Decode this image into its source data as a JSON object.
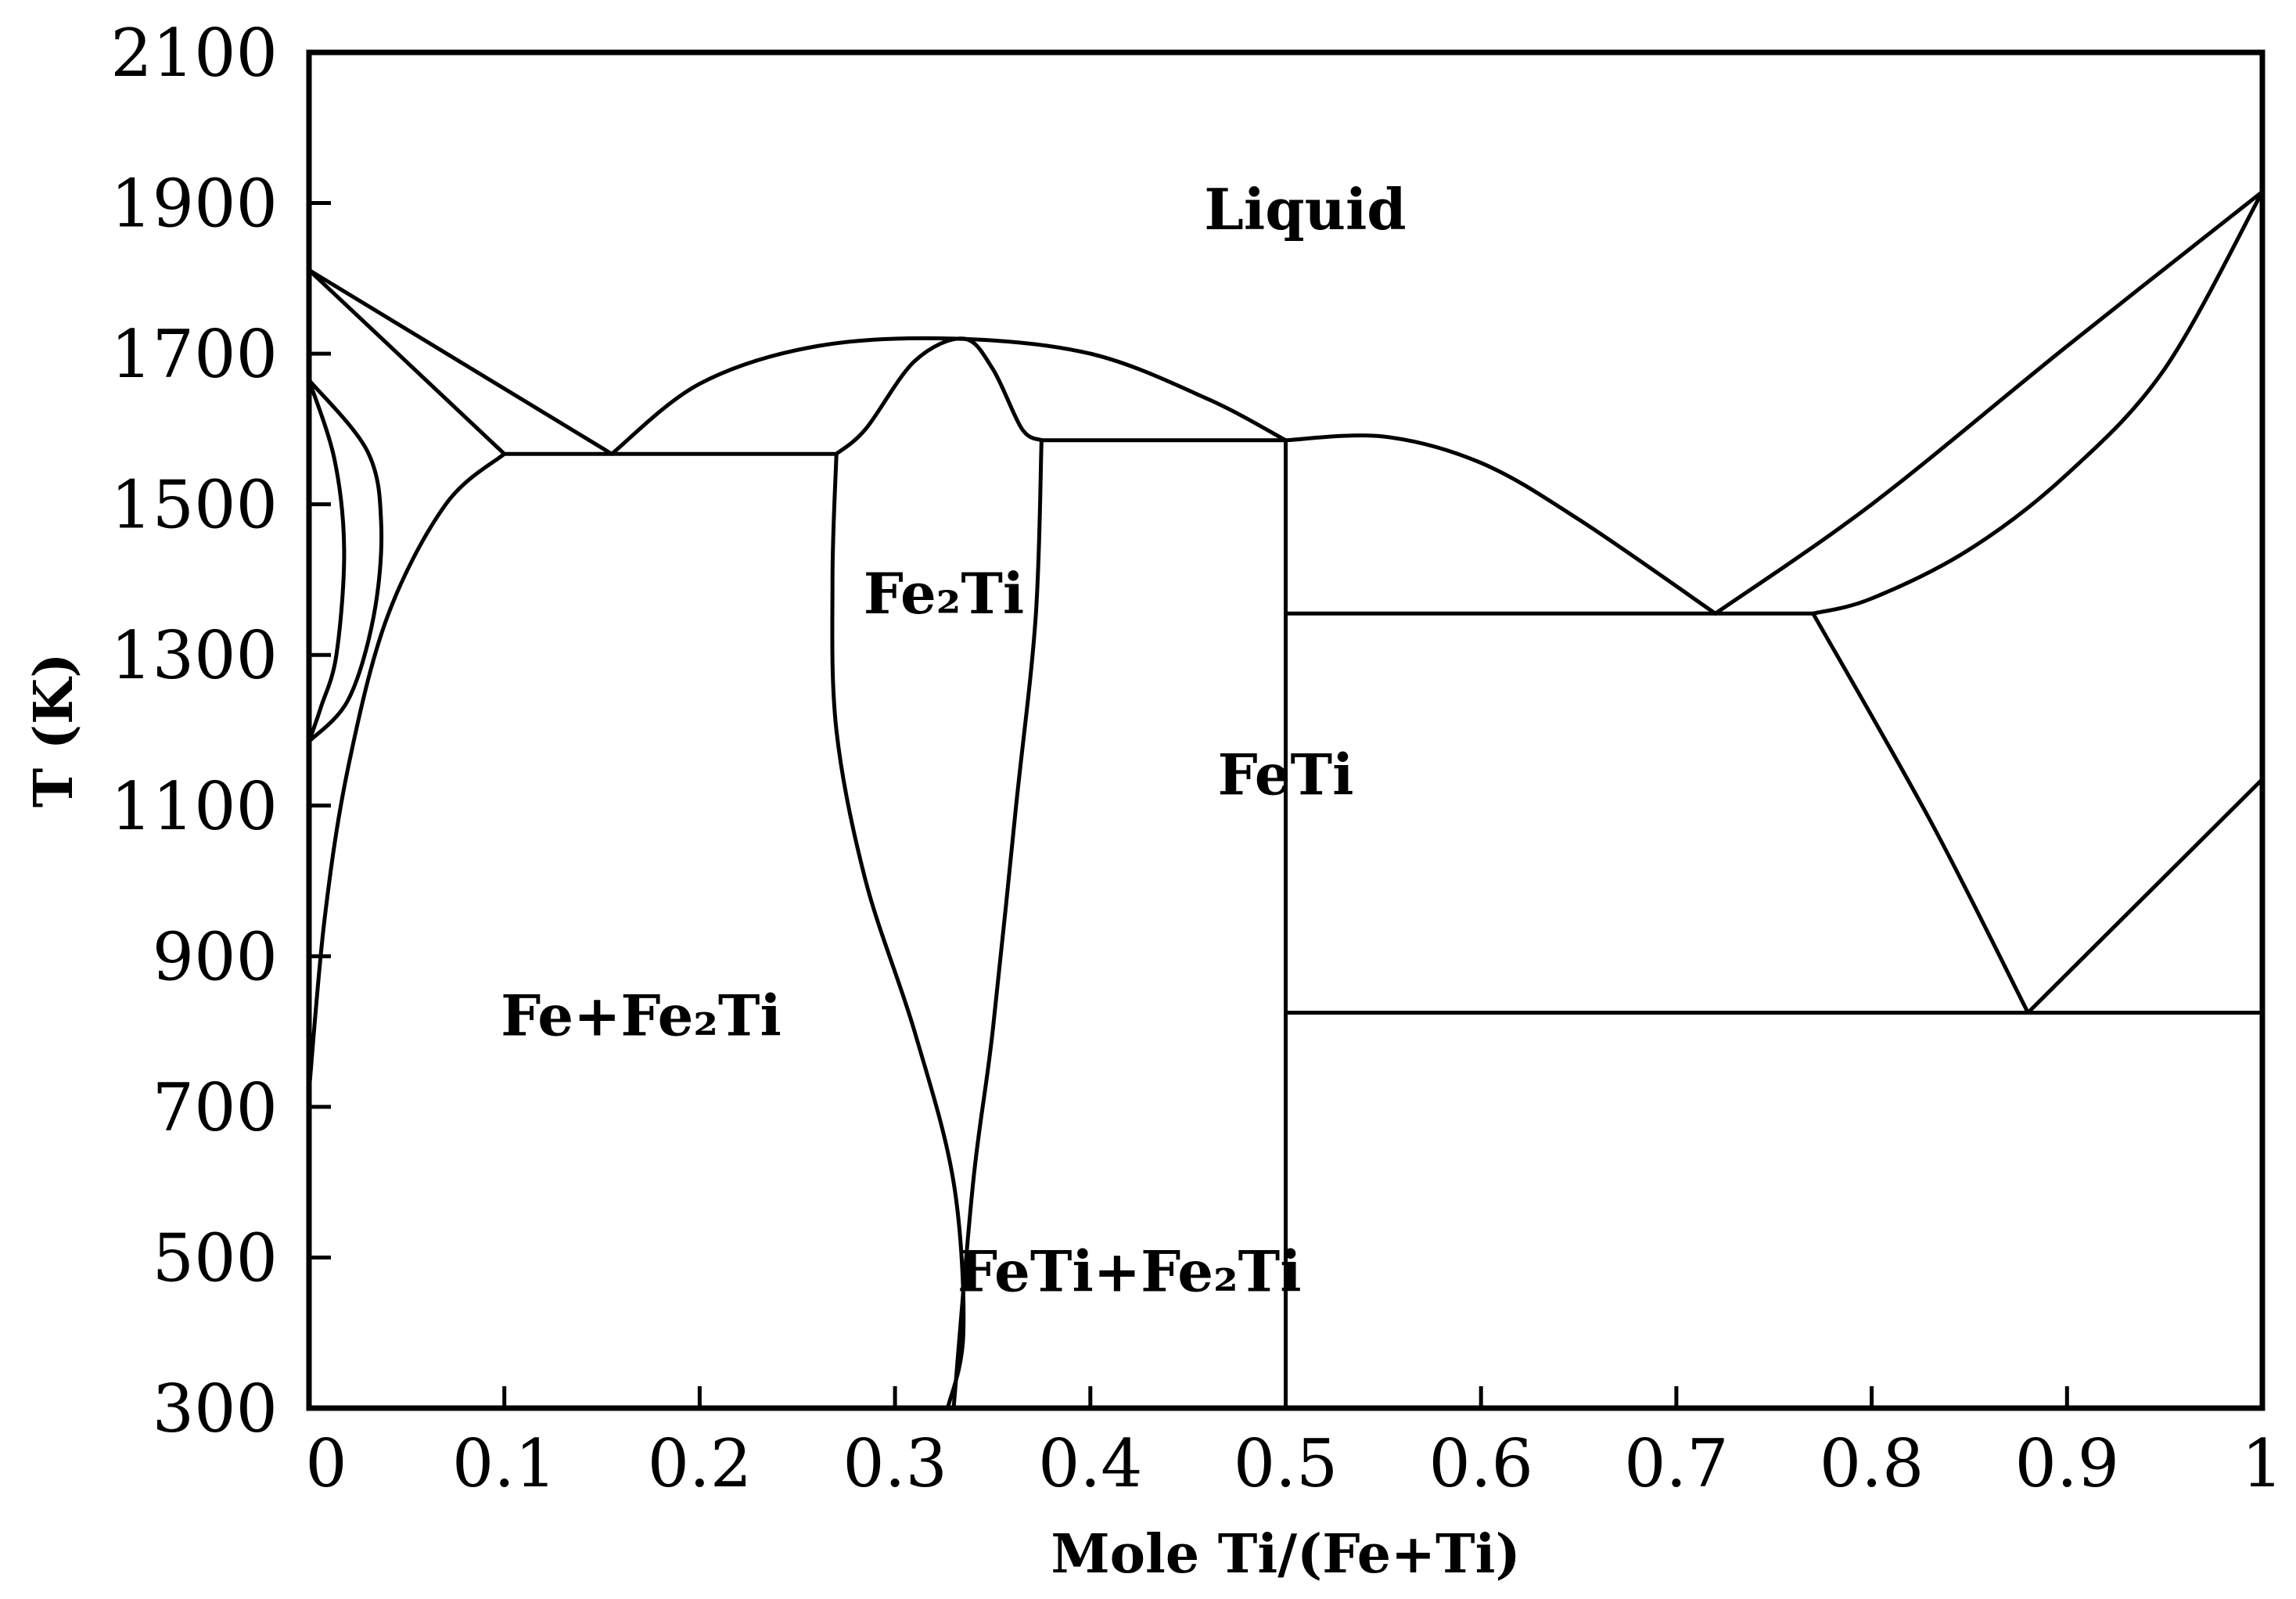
{
  "chart_data": {
    "type": "line",
    "title": "",
    "xlabel": "Mole Ti/(Fe+Ti)",
    "ylabel": "T (K)",
    "xlim": [
      0,
      1
    ],
    "ylim": [
      300,
      2100
    ],
    "xticks": [
      0,
      0.1,
      0.2,
      0.3,
      0.4,
      0.5,
      0.6,
      0.7,
      0.8,
      0.9,
      1
    ],
    "xtick_labels": [
      "0",
      "0.1",
      "0.2",
      "0.3",
      "0.4",
      "0.5",
      "0.6",
      "0.7",
      "0.8",
      "0.9",
      "1"
    ],
    "yticks": [
      300,
      500,
      700,
      900,
      1100,
      1300,
      1500,
      1700,
      1900,
      2100
    ],
    "ytick_labels": [
      "300",
      "500",
      "700",
      "900",
      "1100",
      "1300",
      "1500",
      "1700",
      "1900",
      "2100"
    ],
    "grid": false,
    "legend": "none",
    "region_labels": [
      {
        "text": "Liquid",
        "x": 0.51,
        "y": 1890
      },
      {
        "text": "Fe₂Ti",
        "x": 0.325,
        "y": 1380
      },
      {
        "text": "FeTi",
        "x": 0.5,
        "y": 1140
      },
      {
        "text": "Fe+Fe₂Ti",
        "x": 0.17,
        "y": 820
      },
      {
        "text": "FeTi+Fe₂Ti",
        "x": 0.42,
        "y": 480
      }
    ],
    "series": [
      {
        "points": [
          [
            0,
            1811
          ],
          [
            0.1,
            1567
          ]
        ]
      },
      {
        "points": [
          [
            0,
            1811
          ],
          [
            0.155,
            1567
          ]
        ]
      },
      {
        "points": [
          [
            0.1,
            1567
          ],
          [
            0.27,
            1567
          ]
        ]
      },
      {
        "points": [
          [
            0.1,
            1567
          ],
          [
            0.07,
            1500
          ],
          [
            0.04,
            1350
          ],
          [
            0.02,
            1150
          ],
          [
            0.008,
            950
          ],
          [
            0,
            720
          ]
        ]
      },
      {
        "points": [
          [
            0,
            1665
          ],
          [
            0.03,
            1570
          ],
          [
            0.037,
            1470
          ],
          [
            0.033,
            1350
          ],
          [
            0.02,
            1240
          ],
          [
            0,
            1185
          ]
        ]
      },
      {
        "points": [
          [
            0,
            1665
          ],
          [
            0.013,
            1560
          ],
          [
            0.018,
            1440
          ],
          [
            0.014,
            1300
          ],
          [
            0.006,
            1230
          ],
          [
            0,
            1185
          ]
        ]
      },
      {
        "points": [
          [
            0.155,
            1567
          ],
          [
            0.2,
            1660
          ],
          [
            0.26,
            1710
          ],
          [
            0.33,
            1720
          ],
          [
            0.4,
            1700
          ],
          [
            0.46,
            1640
          ],
          [
            0.5,
            1585
          ]
        ]
      },
      {
        "points": [
          [
            0.27,
            1567
          ],
          [
            0.285,
            1600
          ],
          [
            0.31,
            1690
          ],
          [
            0.335,
            1720
          ],
          [
            0.35,
            1680
          ],
          [
            0.365,
            1600
          ],
          [
            0.375,
            1585
          ]
        ]
      },
      {
        "points": [
          [
            0.375,
            1585
          ],
          [
            0.5,
            1585
          ]
        ]
      },
      {
        "points": [
          [
            0.27,
            1567
          ],
          [
            0.268,
            1400
          ],
          [
            0.27,
            1200
          ],
          [
            0.285,
            1000
          ],
          [
            0.31,
            800
          ],
          [
            0.33,
            600
          ],
          [
            0.335,
            400
          ],
          [
            0.327,
            300
          ]
        ]
      },
      {
        "points": [
          [
            0.375,
            1585
          ],
          [
            0.372,
            1350
          ],
          [
            0.362,
            1100
          ],
          [
            0.35,
            800
          ],
          [
            0.34,
            600
          ],
          [
            0.33,
            300
          ]
        ]
      },
      {
        "points": [
          [
            0.5,
            1585
          ],
          [
            0.5,
            300
          ]
        ]
      },
      {
        "points": [
          [
            0.5,
            1585
          ],
          [
            0.55,
            1590
          ],
          [
            0.6,
            1555
          ],
          [
            0.65,
            1480
          ],
          [
            0.72,
            1355
          ]
        ]
      },
      {
        "points": [
          [
            0.5,
            1355
          ],
          [
            0.77,
            1355
          ]
        ]
      },
      {
        "points": [
          [
            0.72,
            1355
          ],
          [
            0.8,
            1500
          ],
          [
            0.9,
            1710
          ],
          [
            1,
            1915
          ]
        ]
      },
      {
        "points": [
          [
            0.77,
            1355
          ],
          [
            0.8,
            1375
          ],
          [
            0.85,
            1440
          ],
          [
            0.9,
            1540
          ],
          [
            0.95,
            1680
          ],
          [
            1,
            1915
          ]
        ]
      },
      {
        "points": [
          [
            0.77,
            1355
          ],
          [
            0.83,
            1080
          ],
          [
            0.88,
            825
          ]
        ]
      },
      {
        "points": [
          [
            0.88,
            825
          ],
          [
            1,
            1135
          ]
        ]
      },
      {
        "points": [
          [
            0.5,
            825
          ],
          [
            1,
            825
          ]
        ]
      }
    ]
  }
}
